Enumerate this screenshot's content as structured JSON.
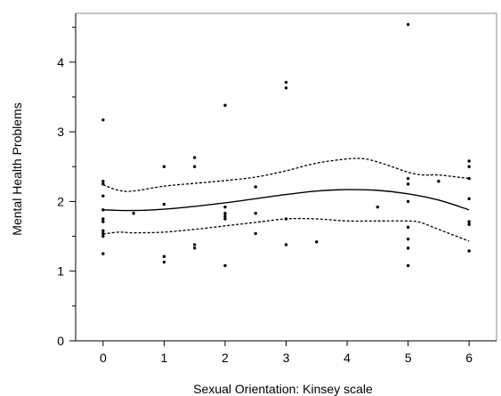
{
  "chart_data": {
    "type": "scatter",
    "title": "",
    "xlabel": "Sexual Orientation: Kinsey scale",
    "ylabel": "Mental Health Problems",
    "xlim": [
      -0.45,
      6.45
    ],
    "ylim": [
      0,
      4.7
    ],
    "x_ticks": [
      0,
      1,
      2,
      3,
      4,
      5,
      6
    ],
    "y_ticks": [
      0,
      1,
      2,
      3,
      4
    ],
    "x_tick_labels": [
      "0",
      "1",
      "2",
      "3",
      "4",
      "5",
      "6"
    ],
    "y_tick_labels": [
      "0",
      "1",
      "2",
      "3",
      "4"
    ],
    "y_minor_ticks": [
      0.5,
      1.5,
      2.5,
      3.5,
      4.5
    ],
    "grid": false,
    "legend": "none",
    "points": [
      {
        "x": 0,
        "y": 3.17
      },
      {
        "x": 0,
        "y": 2.29
      },
      {
        "x": 0,
        "y": 2.25
      },
      {
        "x": 0,
        "y": 2.08
      },
      {
        "x": 0,
        "y": 1.88
      },
      {
        "x": 0,
        "y": 1.75
      },
      {
        "x": 0,
        "y": 1.71
      },
      {
        "x": 0,
        "y": 1.58
      },
      {
        "x": 0,
        "y": 1.54
      },
      {
        "x": 0,
        "y": 1.5
      },
      {
        "x": 0,
        "y": 1.25
      },
      {
        "x": 0.5,
        "y": 1.83
      },
      {
        "x": 1,
        "y": 2.5
      },
      {
        "x": 1,
        "y": 1.96
      },
      {
        "x": 1,
        "y": 1.21
      },
      {
        "x": 1,
        "y": 1.13
      },
      {
        "x": 1.5,
        "y": 2.63
      },
      {
        "x": 1.5,
        "y": 2.5
      },
      {
        "x": 1.5,
        "y": 1.38
      },
      {
        "x": 1.5,
        "y": 1.33
      },
      {
        "x": 2,
        "y": 3.38
      },
      {
        "x": 2,
        "y": 1.92
      },
      {
        "x": 2,
        "y": 1.83
      },
      {
        "x": 2,
        "y": 1.79
      },
      {
        "x": 2,
        "y": 1.75
      },
      {
        "x": 2,
        "y": 1.08
      },
      {
        "x": 2.5,
        "y": 2.21
      },
      {
        "x": 2.5,
        "y": 1.83
      },
      {
        "x": 2.5,
        "y": 1.54
      },
      {
        "x": 3,
        "y": 3.71
      },
      {
        "x": 3,
        "y": 3.63
      },
      {
        "x": 3,
        "y": 1.75
      },
      {
        "x": 3,
        "y": 1.38
      },
      {
        "x": 3.5,
        "y": 1.42
      },
      {
        "x": 4.5,
        "y": 1.92
      },
      {
        "x": 5,
        "y": 4.54
      },
      {
        "x": 5,
        "y": 2.33
      },
      {
        "x": 5,
        "y": 2.25
      },
      {
        "x": 5,
        "y": 2.0
      },
      {
        "x": 5,
        "y": 1.63
      },
      {
        "x": 5,
        "y": 1.46
      },
      {
        "x": 5,
        "y": 1.33
      },
      {
        "x": 5,
        "y": 1.08
      },
      {
        "x": 5.5,
        "y": 2.29
      },
      {
        "x": 6,
        "y": 2.58
      },
      {
        "x": 6,
        "y": 2.5
      },
      {
        "x": 6,
        "y": 2.33
      },
      {
        "x": 6,
        "y": 2.04
      },
      {
        "x": 6,
        "y": 1.71
      },
      {
        "x": 6,
        "y": 1.67
      },
      {
        "x": 6,
        "y": 1.29
      }
    ],
    "fit_line": {
      "x": [
        0,
        0.5,
        1,
        1.5,
        2,
        2.5,
        3,
        3.5,
        4,
        4.5,
        5,
        5.5,
        6
      ],
      "y": [
        1.88,
        1.87,
        1.89,
        1.93,
        1.98,
        2.04,
        2.1,
        2.15,
        2.17,
        2.16,
        2.11,
        2.02,
        1.88
      ]
    },
    "ci_upper": {
      "x": [
        0,
        0.25,
        0.5,
        1,
        1.5,
        2,
        2.5,
        3,
        3.5,
        4,
        4.3,
        4.6,
        5,
        5.25,
        5.5,
        6
      ],
      "y": [
        2.24,
        2.16,
        2.15,
        2.22,
        2.26,
        2.3,
        2.35,
        2.44,
        2.55,
        2.61,
        2.61,
        2.54,
        2.42,
        2.38,
        2.38,
        2.33
      ]
    },
    "ci_lower": {
      "x": [
        0,
        0.25,
        0.5,
        1,
        1.5,
        2,
        2.5,
        3,
        3.5,
        4,
        4.5,
        5,
        5.2,
        5.5,
        6
      ],
      "y": [
        1.53,
        1.56,
        1.55,
        1.56,
        1.6,
        1.65,
        1.7,
        1.75,
        1.75,
        1.72,
        1.72,
        1.72,
        1.7,
        1.6,
        1.43
      ]
    }
  }
}
